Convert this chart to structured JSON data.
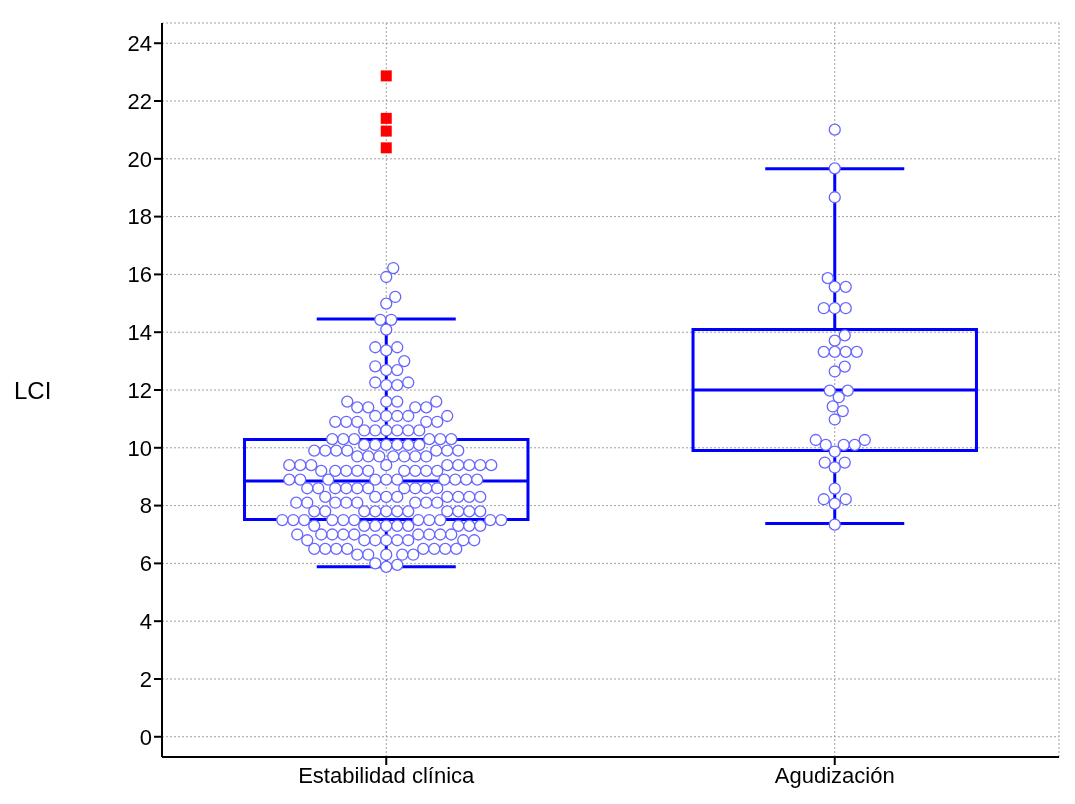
{
  "chart_data": {
    "type": "box",
    "ylabel": "LCI",
    "categories": [
      "Estabilidad clínica",
      "Agudización"
    ],
    "ylim": [
      -0.7,
      24.7
    ],
    "yticks": [
      0,
      2,
      4,
      6,
      8,
      10,
      12,
      14,
      16,
      18,
      20,
      22,
      24
    ],
    "grid": true,
    "series": [
      {
        "type": "box",
        "color": "#0000ff",
        "boxes": [
          {
            "low": 5.88,
            "q1": 7.52,
            "median": 8.85,
            "q3": 10.29,
            "high": 14.46,
            "outliers": [
              22.87,
              21.4,
              20.96,
              20.38
            ]
          },
          {
            "low": 7.38,
            "q1": 9.91,
            "median": 12.0,
            "q3": 14.09,
            "high": 19.66
          }
        ]
      },
      {
        "type": "scatter",
        "color": "#6666ff",
        "marker": "circle",
        "x": [
          "Estabilidad clínica",
          "Estabilidad clínica",
          "Estabilidad clínica",
          "Estabilidad clínica",
          "Estabilidad clínica",
          "Estabilidad clínica",
          "Estabilidad clínica",
          "Estabilidad clínica",
          "Estabilidad clínica",
          "Estabilidad clínica",
          "Estabilidad clínica",
          "Estabilidad clínica",
          "Estabilidad clínica",
          "Estabilidad clínica",
          "Estabilidad clínica",
          "Estabilidad clínica",
          "Estabilidad clínica",
          "Estabilidad clínica",
          "Estabilidad clínica",
          "Estabilidad clínica",
          "Estabilidad clínica",
          "Estabilidad clínica",
          "Estabilidad clínica",
          "Estabilidad clínica",
          "Estabilidad clínica",
          "Estabilidad clínica",
          "Estabilidad clínica",
          "Estabilidad clínica",
          "Estabilidad clínica",
          "Estabilidad clínica",
          "Estabilidad clínica",
          "Estabilidad clínica",
          "Estabilidad clínica",
          "Estabilidad clínica",
          "Estabilidad clínica",
          "Estabilidad clínica",
          "Estabilidad clínica",
          "Estabilidad clínica",
          "Estabilidad clínica",
          "Estabilidad clínica",
          "Estabilidad clínica",
          "Estabilidad clínica",
          "Estabilidad clínica",
          "Estabilidad clínica",
          "Estabilidad clínica",
          "Estabilidad clínica",
          "Estabilidad clínica",
          "Estabilidad clínica",
          "Estabilidad clínica",
          "Estabilidad clínica",
          "Estabilidad clínica",
          "Estabilidad clínica",
          "Estabilidad clínica",
          "Estabilidad clínica",
          "Estabilidad clínica",
          "Estabilidad clínica",
          "Estabilidad clínica",
          "Estabilidad clínica",
          "Estabilidad clínica",
          "Estabilidad clínica",
          "Estabilidad clínica",
          "Estabilidad clínica",
          "Estabilidad clínica",
          "Estabilidad clínica",
          "Estabilidad clínica",
          "Estabilidad clínica",
          "Estabilidad clínica",
          "Estabilidad clínica",
          "Estabilidad clínica",
          "Estabilidad clínica",
          "Estabilidad clínica",
          "Estabilidad clínica",
          "Estabilidad clínica",
          "Estabilidad clínica",
          "Estabilidad clínica",
          "Estabilidad clínica",
          "Estabilidad clínica",
          "Estabilidad clínica",
          "Estabilidad clínica",
          "Estabilidad clínica",
          "Estabilidad clínica",
          "Estabilidad clínica",
          "Estabilidad clínica",
          "Estabilidad clínica",
          "Estabilidad clínica",
          "Estabilidad clínica",
          "Estabilidad clínica",
          "Estabilidad clínica",
          "Estabilidad clínica",
          "Estabilidad clínica",
          "Estabilidad clínica",
          "Estabilidad clínica",
          "Estabilidad clínica",
          "Estabilidad clínica",
          "Estabilidad clínica",
          "Estabilidad clínica",
          "Estabilidad clínica",
          "Estabilidad clínica",
          "Estabilidad clínica",
          "Estabilidad clínica",
          "Estabilidad clínica",
          "Estabilidad clínica",
          "Estabilidad clínica",
          "Estabilidad clínica",
          "Estabilidad clínica",
          "Estabilidad clínica",
          "Estabilidad clínica",
          "Estabilidad clínica",
          "Estabilidad clínica",
          "Estabilidad clínica",
          "Estabilidad clínica",
          "Estabilidad clínica",
          "Estabilidad clínica",
          "Estabilidad clínica",
          "Estabilidad clínica",
          "Estabilidad clínica",
          "Estabilidad clínica",
          "Estabilidad clínica",
          "Estabilidad clínica",
          "Estabilidad clínica",
          "Estabilidad clínica",
          "Estabilidad clínica",
          "Estabilidad clínica",
          "Estabilidad clínica",
          "Estabilidad clínica",
          "Estabilidad clínica",
          "Estabilidad clínica",
          "Estabilidad clínica",
          "Estabilidad clínica",
          "Estabilidad clínica",
          "Estabilidad clínica",
          "Estabilidad clínica",
          "Estabilidad clínica",
          "Estabilidad clínica",
          "Estabilidad clínica",
          "Estabilidad clínica",
          "Estabilidad clínica",
          "Estabilidad clínica",
          "Estabilidad clínica",
          "Estabilidad clínica",
          "Estabilidad clínica",
          "Estabilidad clínica",
          "Estabilidad clínica",
          "Estabilidad clínica",
          "Estabilidad clínica",
          "Estabilidad clínica",
          "Estabilidad clínica",
          "Estabilidad clínica",
          "Estabilidad clínica",
          "Estabilidad clínica",
          "Estabilidad clínica",
          "Estabilidad clínica",
          "Estabilidad clínica",
          "Estabilidad clínica",
          "Estabilidad clínica",
          "Estabilidad clínica",
          "Estabilidad clínica",
          "Estabilidad clínica",
          "Estabilidad clínica",
          "Estabilidad clínica",
          "Estabilidad clínica",
          "Estabilidad clínica",
          "Estabilidad clínica",
          "Estabilidad clínica",
          "Estabilidad clínica",
          "Estabilidad clínica",
          "Estabilidad clínica",
          "Estabilidad clínica",
          "Estabilidad clínica",
          "Estabilidad clínica",
          "Estabilidad clínica",
          "Estabilidad clínica",
          "Estabilidad clínica",
          "Estabilidad clínica",
          "Estabilidad clínica",
          "Estabilidad clínica",
          "Estabilidad clínica",
          "Estabilidad clínica",
          "Estabilidad clínica",
          "Estabilidad clínica",
          "Estabilidad clínica",
          "Estabilidad clínica",
          "Estabilidad clínica",
          "Estabilidad clínica",
          "Estabilidad clínica",
          "Estabilidad clínica",
          "Agudización",
          "Agudización",
          "Agudización",
          "Agudización",
          "Agudización",
          "Agudización",
          "Agudización",
          "Agudización",
          "Agudización",
          "Agudización",
          "Agudización",
          "Agudización",
          "Agudización",
          "Agudización",
          "Agudización",
          "Agudización",
          "Agudización",
          "Agudización",
          "Agudización",
          "Agudización",
          "Agudización",
          "Agudización",
          "Agudización",
          "Agudización",
          "Agudización",
          "Agudización",
          "Agudización",
          "Agudización",
          "Agudización",
          "Agudización",
          "Agudización",
          "Agudización",
          "Agudización",
          "Agudización",
          "Agudización",
          "Agudización",
          "Agudización"
        ],
        "values": [
          16.22,
          15.91,
          15.22,
          14.99,
          14.43,
          14.43,
          14.09,
          13.48,
          13.48,
          13.37,
          13.0,
          12.82,
          12.69,
          12.69,
          12.26,
          12.26,
          12.17,
          12.17,
          11.6,
          11.6,
          11.6,
          11.6,
          11.4,
          11.4,
          11.4,
          11.4,
          11.1,
          11.1,
          11.1,
          11.1,
          11.1,
          10.9,
          10.9,
          10.9,
          10.9,
          10.9,
          10.6,
          10.6,
          10.6,
          10.6,
          10.6,
          10.6,
          10.3,
          10.3,
          10.3,
          10.3,
          10.3,
          10.3,
          10.1,
          10.1,
          10.1,
          10.1,
          10.1,
          10.1,
          9.9,
          9.9,
          9.9,
          9.9,
          9.9,
          9.9,
          9.9,
          9.7,
          9.7,
          9.7,
          9.7,
          9.7,
          9.7,
          9.7,
          9.4,
          9.4,
          9.4,
          9.4,
          9.4,
          9.4,
          9.4,
          9.4,
          9.4,
          9.2,
          9.2,
          9.2,
          9.2,
          9.2,
          9.2,
          9.2,
          9.2,
          9.2,
          8.9,
          8.9,
          8.9,
          8.9,
          8.9,
          8.9,
          8.9,
          8.9,
          8.9,
          8.9,
          8.6,
          8.6,
          8.6,
          8.6,
          8.6,
          8.6,
          8.6,
          8.6,
          8.6,
          8.6,
          8.3,
          8.3,
          8.3,
          8.3,
          8.3,
          8.3,
          8.3,
          8.3,
          8.1,
          8.1,
          8.1,
          8.1,
          8.1,
          8.1,
          8.1,
          8.1,
          7.8,
          7.8,
          7.8,
          7.8,
          7.8,
          7.8,
          7.8,
          7.8,
          7.8,
          7.8,
          7.8,
          7.5,
          7.5,
          7.5,
          7.5,
          7.5,
          7.5,
          7.5,
          7.5,
          7.5,
          7.5,
          7.5,
          7.3,
          7.3,
          7.3,
          7.3,
          7.3,
          7.3,
          7.3,
          7.3,
          7.3,
          7.0,
          7.0,
          7.0,
          7.0,
          7.0,
          7.0,
          7.0,
          7.0,
          7.0,
          6.8,
          6.8,
          6.8,
          6.8,
          6.8,
          6.8,
          6.8,
          6.8,
          6.5,
          6.5,
          6.5,
          6.5,
          6.5,
          6.5,
          6.5,
          6.5,
          6.3,
          6.3,
          6.3,
          6.3,
          6.3,
          6.0,
          5.95,
          5.88,
          21.01,
          19.67,
          18.67,
          15.87,
          15.57,
          15.57,
          14.83,
          14.83,
          14.83,
          13.89,
          13.71,
          13.32,
          13.32,
          13.32,
          13.32,
          12.81,
          12.64,
          11.98,
          11.98,
          11.75,
          11.43,
          11.27,
          10.98,
          10.27,
          10.27,
          10.1,
          10.1,
          10.1,
          9.87,
          9.49,
          9.49,
          9.32,
          8.59,
          8.22,
          8.22,
          8.07,
          7.34
        ]
      }
    ]
  }
}
